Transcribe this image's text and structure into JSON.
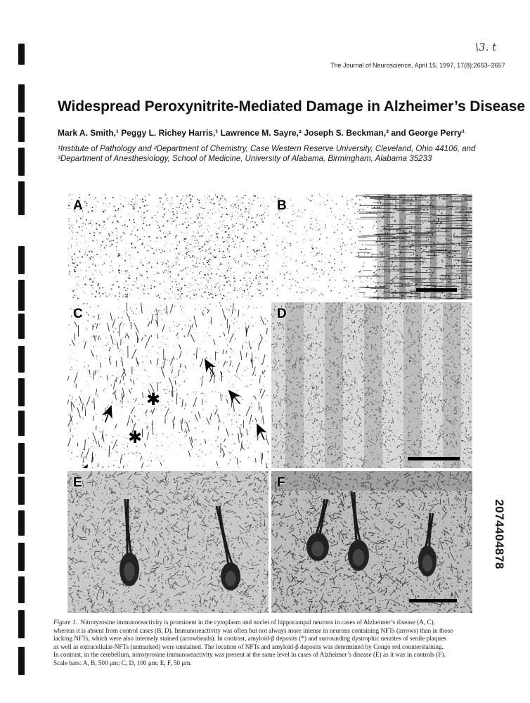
{
  "handwritten_note": "\\3. t",
  "journal_line": "The Journal of Neuroscience, April 15, 1997, 17(8):2653–2657",
  "title": "Widespread Peroxynitrite-Mediated Damage in Alzheimer’s Disease",
  "authors": "Mark A. Smith,¹ Peggy L. Richey Harris,¹ Lawrence M. Sayre,² Joseph S. Beckman,³ and George Perry¹",
  "affiliations": [
    "¹Institute of Pathology and ²Department of Chemistry, Case Western Reserve University, Cleveland, Ohio 44106, and",
    "³Department of Anesthesiology, School of Medicine, University of Alabama, Birmingham, Alabama 35233"
  ],
  "figure": {
    "panels": [
      {
        "label": "A",
        "texture": "dots"
      },
      {
        "label": "B",
        "texture": "bands"
      },
      {
        "label": "C",
        "texture": "fibers"
      },
      {
        "label": "D",
        "texture": "dense"
      },
      {
        "label": "E",
        "texture": "neurons"
      },
      {
        "label": "F",
        "texture": "neurons-dark"
      }
    ]
  },
  "side_identifier": "2074404878",
  "caption": {
    "figure_label": "Figure 1.",
    "lines": [
      "Nitrotyrosine immunoreactivity is prominent in the cytoplasm and nuclei of hippocampal neurons in cases of Alzheimer’s disease (A, C),",
      "whereas it is absent from control cases (B, D). Immunoreactivity was often but not always more intense in neurons containing NFTs (arrows) than in those",
      "lacking NFTs, which were also intensely stained (arrowheads). In contrast, amyloid-β deposits (*) and surrounding dystrophic neurites of senile plaques",
      "as well as extracellular-NFTs (unmarked) were unstained. The location of NFTs and amyloid-β deposits was determined by Congo red counterstaining.",
      "In contrast, in the cerebellum, nitrotyrosine immunoreactivity was present at the same level in cases of Alzheimer’s disease (E) as it was in controls (F).",
      "Scale bars: A, B, 500 μm; C, D, 100 μm; E, F, 50 μm."
    ]
  }
}
